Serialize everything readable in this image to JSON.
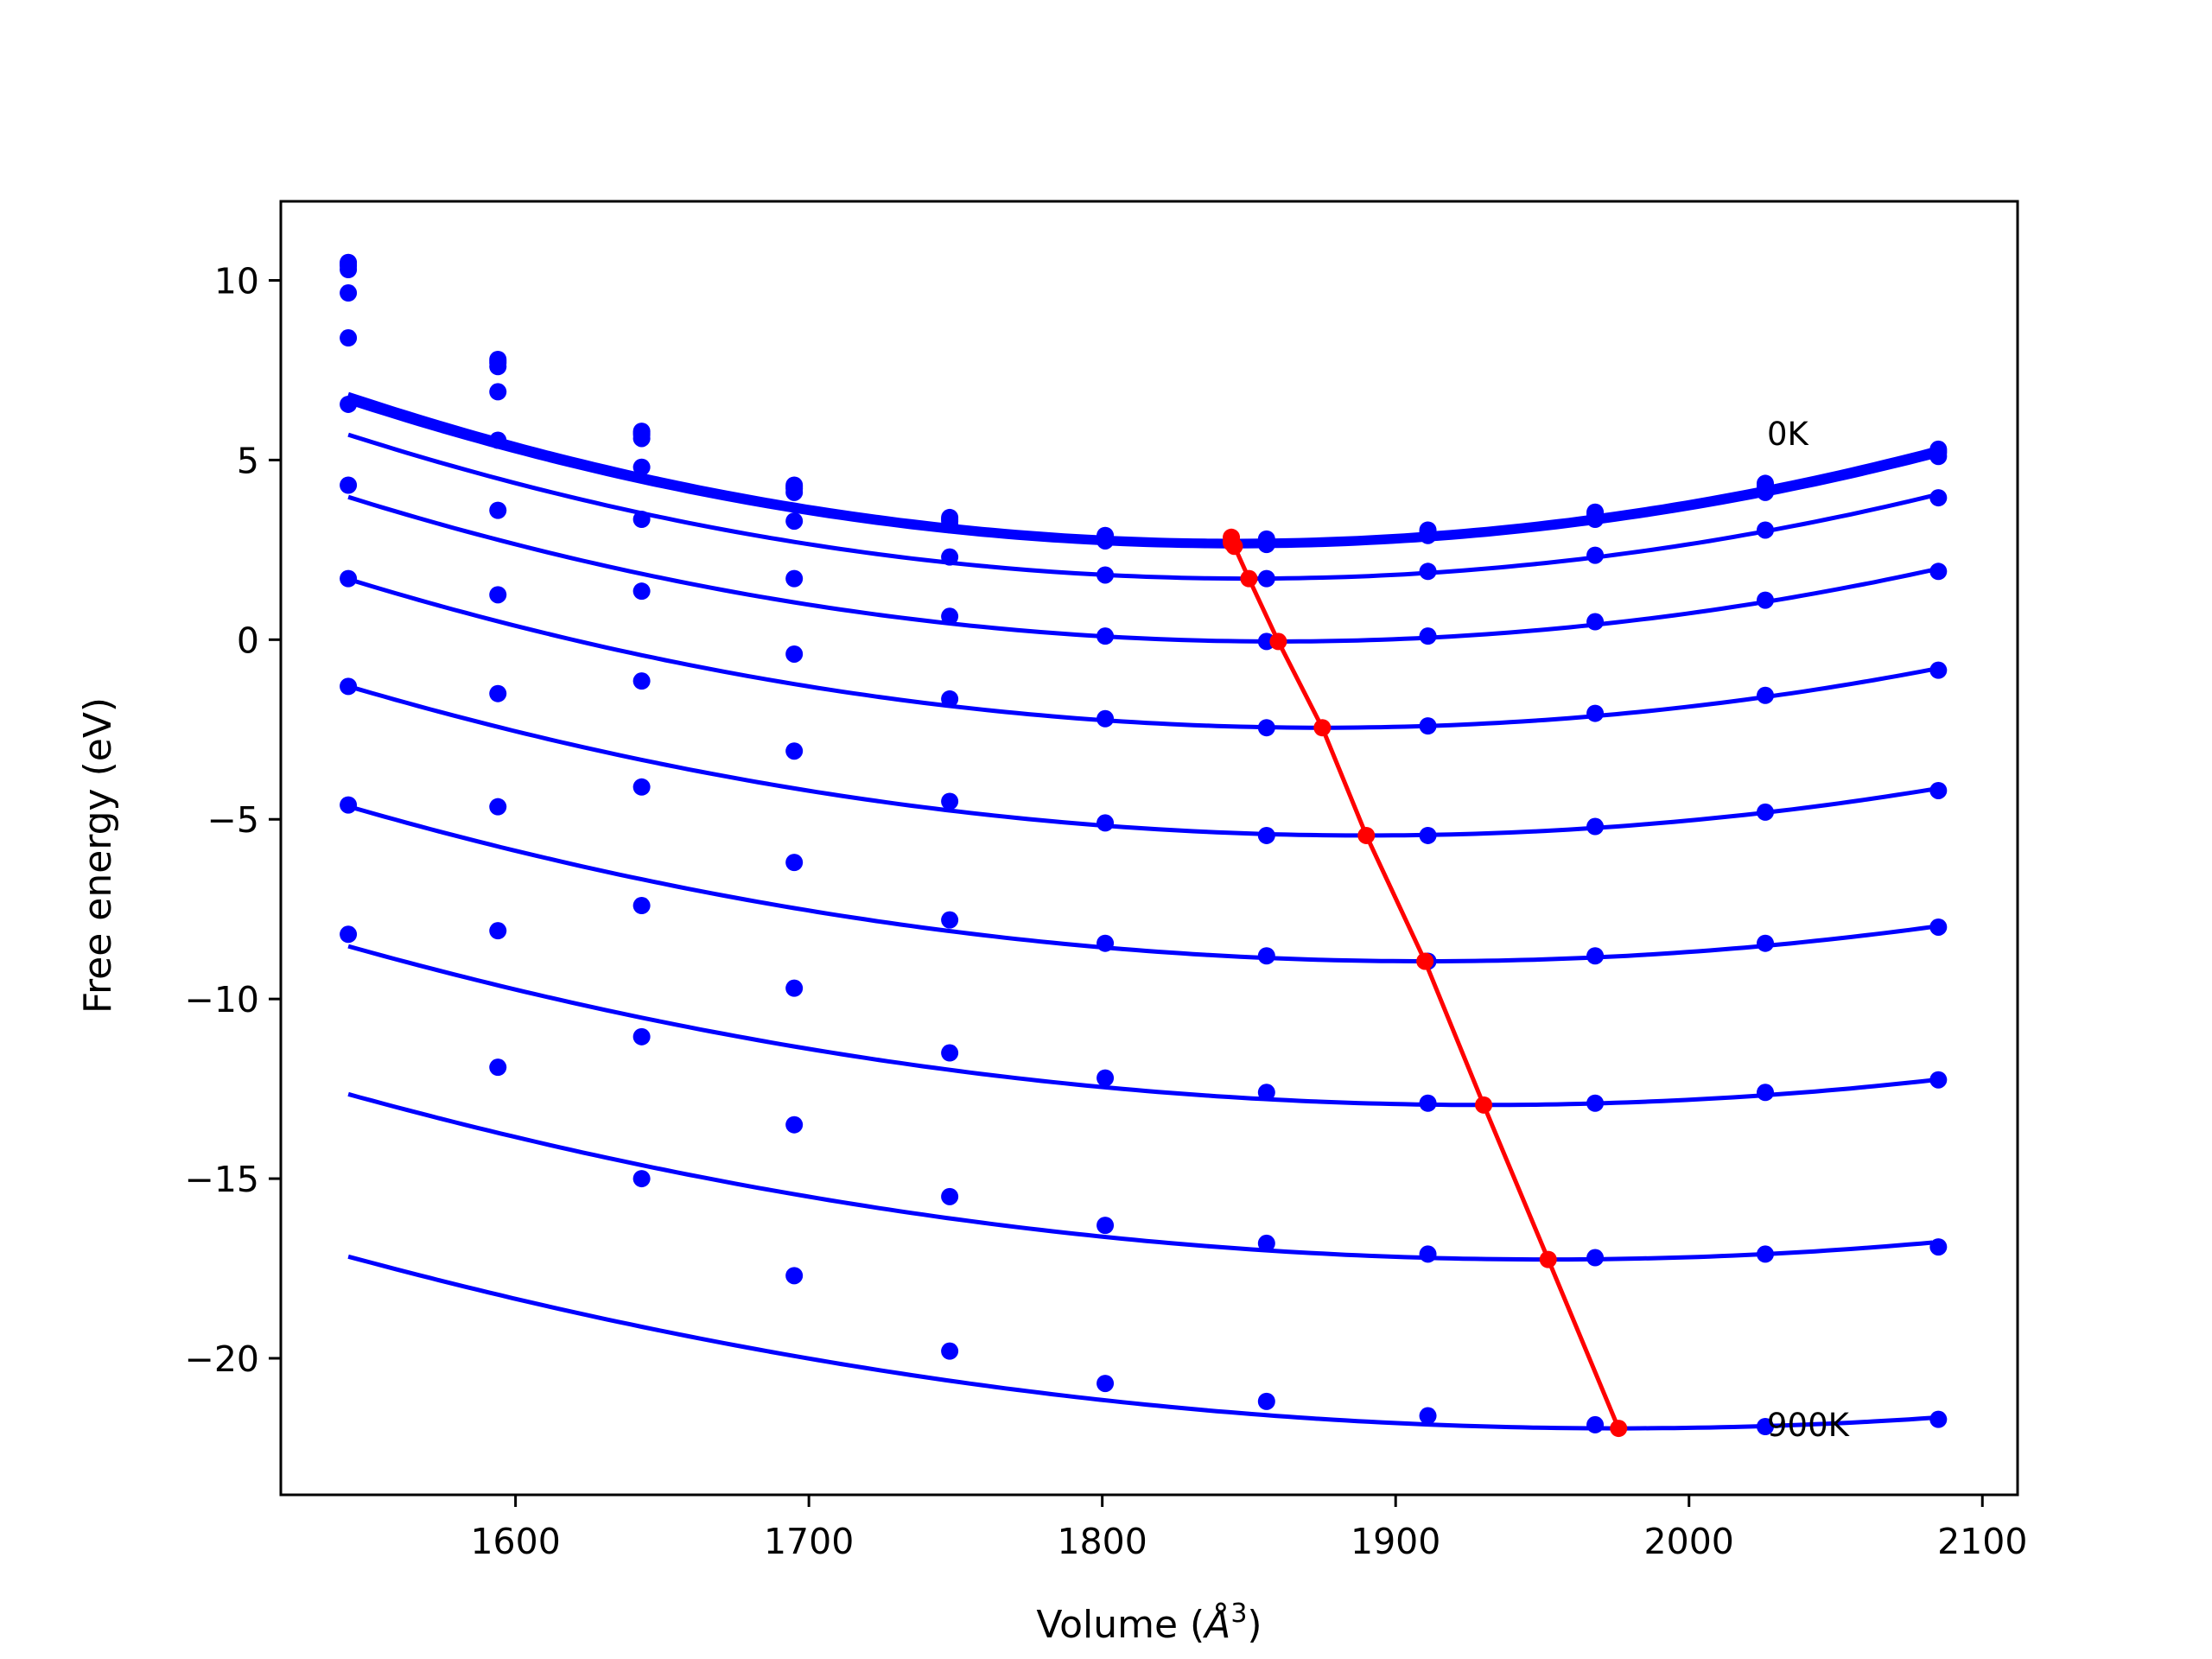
{
  "chart_data": {
    "type": "line",
    "xlabel_main": "Volume (",
    "xlabel_unit": "Å",
    "xlabel_exp": "3",
    "xlabel_close": ")",
    "ylabel": "Free energy (eV)",
    "xlim": [
      1520,
      2112
    ],
    "ylim": [
      -23.8,
      12.2
    ],
    "xticks": [
      1600,
      1700,
      1800,
      1900,
      2000,
      2100
    ],
    "xtick_labels": [
      "1600",
      "1700",
      "1800",
      "1900",
      "2000",
      "2100"
    ],
    "yticks": [
      10,
      5,
      0,
      -5,
      -10,
      -15,
      -20
    ],
    "ytick_labels": [
      "10",
      "5",
      "0",
      "−5",
      "−10",
      "−15",
      "−20"
    ],
    "grid": false,
    "annotations": [
      {
        "text": "0K",
        "x": 2026,
        "y": 5.3
      },
      {
        "text": "900K",
        "x": 2026,
        "y": -22.3
      }
    ],
    "colors": {
      "series": "#0000ff",
      "minimum_line": "#ff0000",
      "frame": "#000000",
      "background": "#ffffff"
    },
    "volumes": [
      1543,
      1594,
      1643,
      1695,
      1748,
      1801,
      1856,
      1911,
      1968,
      2026,
      2085
    ],
    "series": [
      {
        "points": [
          10.5,
          7.8,
          5.8,
          4.3,
          3.4,
          2.9,
          2.8,
          3.05,
          3.55,
          4.35,
          5.3
        ],
        "fit": {
          "a": 4.48e-05,
          "vmin": 1845,
          "fmin": 2.75
        }
      },
      {
        "points": [
          10.45,
          7.75,
          5.75,
          4.25,
          3.35,
          2.85,
          2.75,
          3.0,
          3.5,
          4.3,
          5.25
        ],
        "fit": {
          "a": 4.48e-05,
          "vmin": 1845,
          "fmin": 2.7
        }
      },
      {
        "points": [
          10.4,
          7.7,
          5.7,
          4.2,
          3.3,
          2.8,
          2.7,
          2.95,
          3.45,
          4.25,
          5.2
        ],
        "fit": {
          "a": 4.45e-05,
          "vmin": 1845,
          "fmin": 2.65
        }
      },
      {
        "points": [
          10.3,
          7.6,
          5.6,
          4.1,
          3.2,
          2.75,
          2.65,
          2.9,
          3.35,
          4.1,
          5.1
        ],
        "fit": {
          "a": 4.4e-05,
          "vmin": 1845,
          "fmin": 2.6
        }
      },
      {
        "points": [
          9.65,
          6.9,
          4.8,
          3.3,
          2.3,
          1.8,
          1.7,
          1.9,
          2.35,
          3.05,
          3.95
        ],
        "fit": {
          "a": 4.25e-05,
          "vmin": 1850,
          "fmin": 1.7
        }
      },
      {
        "points": [
          8.4,
          5.55,
          3.35,
          1.7,
          0.65,
          0.1,
          -0.05,
          0.1,
          0.5,
          1.1,
          1.9
        ],
        "fit": {
          "a": 4e-05,
          "vmin": 1860,
          "fmin": -0.05
        }
      },
      {
        "points": [
          6.55,
          3.6,
          1.35,
          -0.4,
          -1.65,
          -2.2,
          -2.45,
          -2.4,
          -2.05,
          -1.55,
          -0.85
        ],
        "fit": {
          "a": 3.75e-05,
          "vmin": 1875,
          "fmin": -2.45
        }
      },
      {
        "points": [
          4.3,
          1.25,
          -1.15,
          -3.1,
          -4.5,
          -5.1,
          -5.45,
          -5.45,
          -5.2,
          -4.8,
          -4.2
        ],
        "fit": {
          "a": 3.45e-05,
          "vmin": 1890,
          "fmin": -5.45
        }
      },
      {
        "points": [
          1.7,
          -1.5,
          -4.1,
          -6.2,
          -7.8,
          -8.45,
          -8.8,
          -8.95,
          -8.8,
          -8.45,
          -8.0
        ],
        "fit": {
          "a": 3.2e-05,
          "vmin": 1910,
          "fmin": -8.95
        }
      },
      {
        "points": [
          -1.3,
          -4.65,
          -7.4,
          -9.7,
          -11.5,
          -12.2,
          -12.6,
          -12.9,
          -12.9,
          -12.6,
          -12.25
        ],
        "fit": {
          "a": 2.95e-05,
          "vmin": 1930,
          "fmin": -12.95
        }
      },
      {
        "points": [
          -4.6,
          -8.1,
          -11.05,
          -13.5,
          -15.5,
          -16.3,
          -16.8,
          -17.1,
          -17.2,
          -17.1,
          -16.9
        ],
        "fit": {
          "a": 2.75e-05,
          "vmin": 1952,
          "fmin": -17.25
        }
      },
      {
        "points": [
          -8.2,
          -11.9,
          -15.0,
          -17.7,
          -19.8,
          -20.7,
          -21.2,
          -21.6,
          -21.85,
          -21.9,
          -21.7
        ],
        "fit": {
          "a": 2.55e-05,
          "vmin": 1976,
          "fmin": -21.95
        }
      }
    ],
    "minimum_line": {
      "x": [
        1844,
        1844,
        1844,
        1845,
        1850,
        1860,
        1875,
        1890,
        1910,
        1930,
        1952,
        1976
      ],
      "y": [
        2.85,
        2.75,
        2.7,
        2.6,
        1.7,
        -0.05,
        -2.45,
        -5.45,
        -8.95,
        -12.95,
        -17.25,
        -21.95
      ]
    }
  }
}
